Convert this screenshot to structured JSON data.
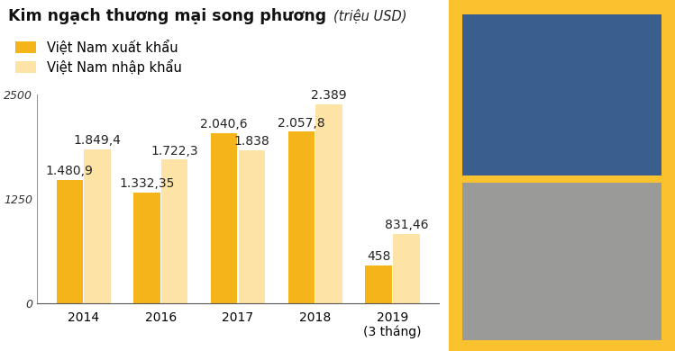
{
  "chart_data": {
    "type": "bar",
    "title": "Kim ngạch thương mại song phương",
    "subtitle": "(triệu USD)",
    "categories": [
      "2014",
      "2016",
      "2017",
      "2018",
      "2019\n(3 tháng)"
    ],
    "series": [
      {
        "name": "Việt Nam xuất khẩu",
        "color": "#f5b51a",
        "values": [
          1480.9,
          1332.35,
          2040.6,
          2057.8,
          458
        ],
        "value_labels": [
          "1.480,9",
          "1.332,35",
          "2.040,6",
          "2.057,8",
          "458"
        ]
      },
      {
        "name": "Việt Nam nhập khẩu",
        "color": "#fde3a5",
        "values": [
          1849.4,
          1722.3,
          1838,
          2389,
          831.46
        ],
        "value_labels": [
          "1.849,4",
          "1.722,3",
          "1.838",
          "2.389",
          "831,46"
        ]
      }
    ],
    "ylim": [
      0,
      2500
    ],
    "yticks": [
      0,
      1250,
      2500
    ],
    "grid": false,
    "legend": "upper left",
    "data_labels": true
  }
}
